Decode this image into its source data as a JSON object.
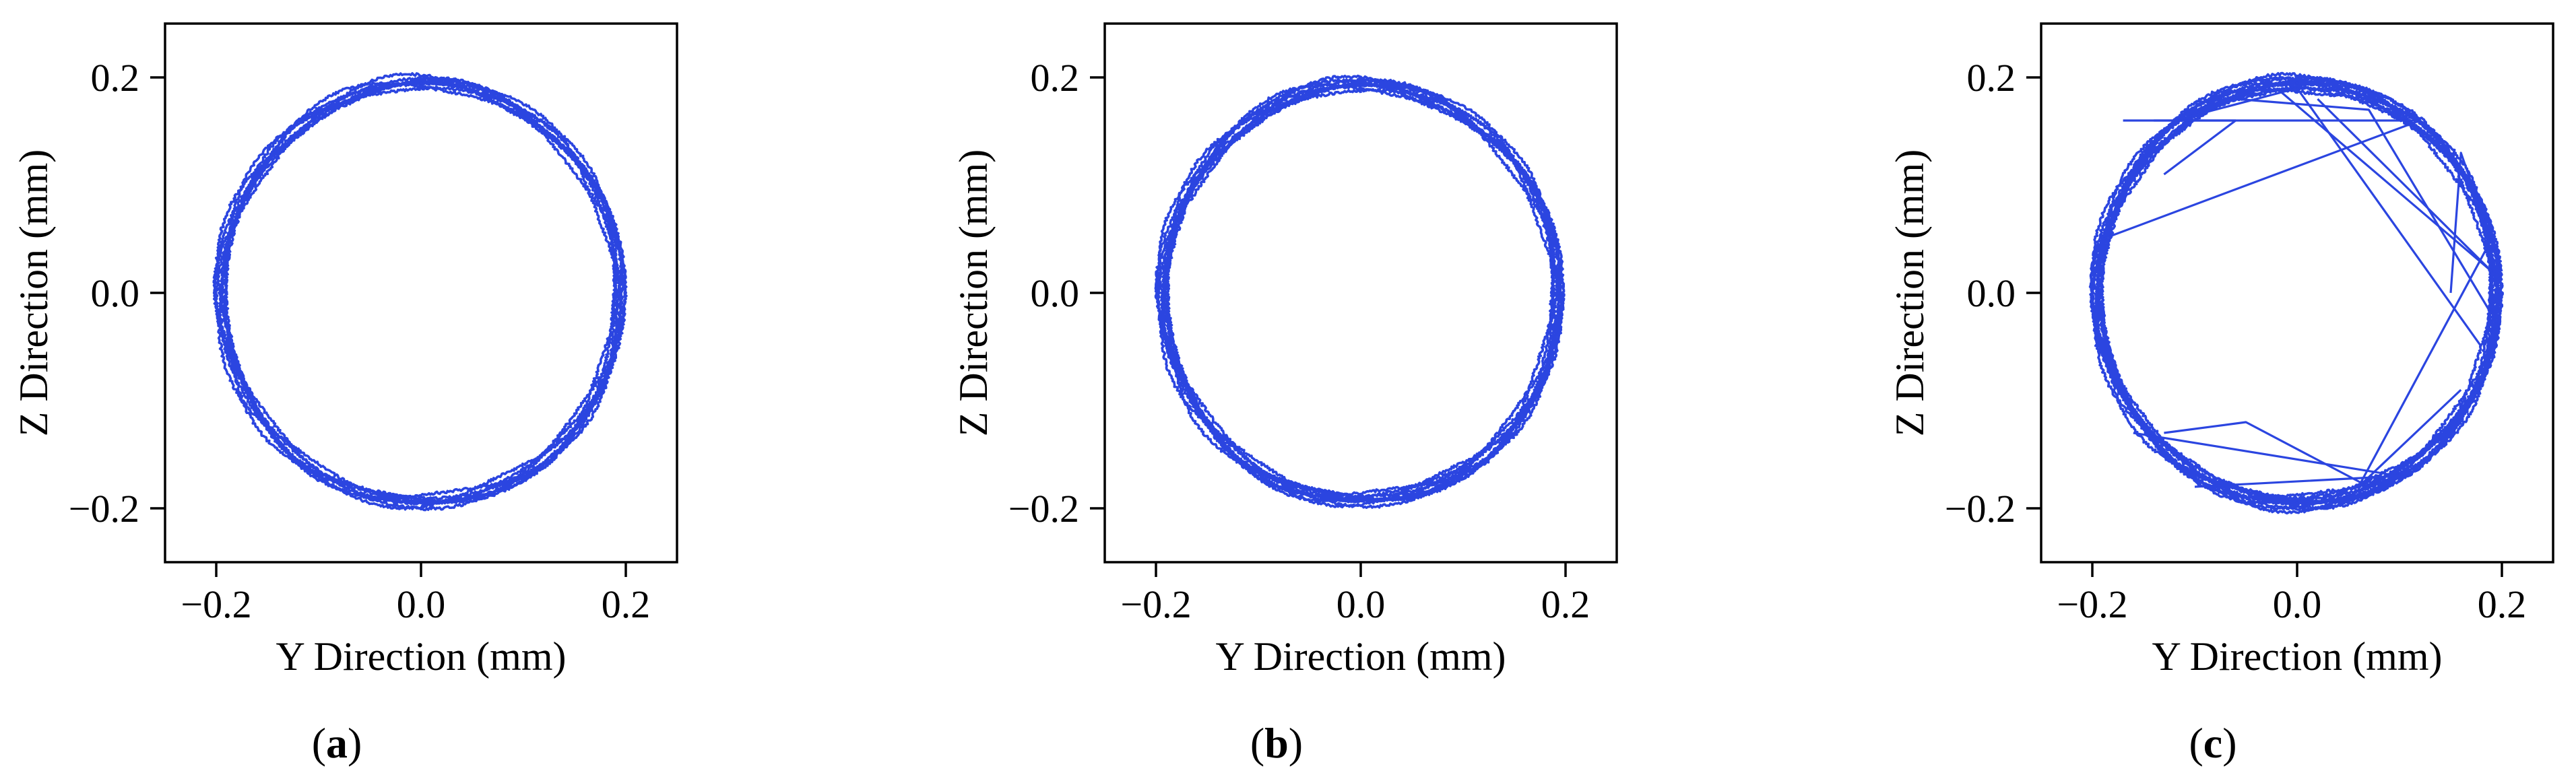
{
  "chart_data": [
    {
      "type": "line",
      "panel_label": "a",
      "xlabel": "Y Direction (mm)",
      "ylabel": "Z Direction (mm)",
      "xlim": [
        -0.25,
        0.25
      ],
      "ylim": [
        -0.25,
        0.25
      ],
      "xticks": [
        -0.2,
        0.0,
        0.2
      ],
      "yticks": [
        -0.2,
        0.0,
        0.2
      ],
      "xtick_labels": [
        "−0.2",
        "0.0",
        "0.2"
      ],
      "ytick_labels": [
        "−0.2",
        "0.0",
        "0.2"
      ],
      "grid": false,
      "series": [
        {
          "color": "#2b45e0",
          "orbit_radius": 0.195,
          "revolutions": 9,
          "x": [
            0.0,
            0.098,
            0.169,
            0.195,
            0.169,
            0.098,
            0.0,
            -0.098,
            -0.169,
            -0.195,
            -0.169,
            -0.098,
            0.0
          ],
          "y": [
            0.195,
            0.169,
            0.098,
            0.0,
            -0.098,
            -0.169,
            -0.195,
            -0.169,
            -0.098,
            0.0,
            0.098,
            0.169,
            0.195
          ]
        }
      ]
    },
    {
      "type": "line",
      "panel_label": "b",
      "xlabel": "Y Direction (mm)",
      "ylabel": "Z Direction (mm)",
      "xlim": [
        -0.25,
        0.25
      ],
      "ylim": [
        -0.25,
        0.25
      ],
      "xticks": [
        -0.2,
        0.0,
        0.2
      ],
      "yticks": [
        -0.2,
        0.0,
        0.2
      ],
      "xtick_labels": [
        "−0.2",
        "0.0",
        "0.2"
      ],
      "ytick_labels": [
        "−0.2",
        "0.0",
        "0.2"
      ],
      "grid": false,
      "series": [
        {
          "color": "#2b45e0",
          "orbit_radius": 0.193,
          "revolutions": 10,
          "x": [
            0.0,
            0.097,
            0.167,
            0.193,
            0.167,
            0.097,
            0.0,
            -0.097,
            -0.167,
            -0.193,
            -0.167,
            -0.097,
            0.0
          ],
          "y": [
            0.193,
            0.167,
            0.097,
            0.0,
            -0.097,
            -0.167,
            -0.193,
            -0.167,
            -0.097,
            0.0,
            0.097,
            0.167,
            0.193
          ]
        }
      ]
    },
    {
      "type": "line",
      "panel_label": "c",
      "xlabel": "Y Direction (mm)",
      "ylabel": "Z Direction (mm)",
      "xlim": [
        -0.25,
        0.25
      ],
      "ylim": [
        -0.25,
        0.25
      ],
      "xticks": [
        -0.2,
        0.0,
        0.2
      ],
      "yticks": [
        -0.2,
        0.0,
        0.2
      ],
      "xtick_labels": [
        "−0.2",
        "0.0",
        "0.2"
      ],
      "ytick_labels": [
        "−0.2",
        "0.0",
        "0.2"
      ],
      "grid": false,
      "series": [
        {
          "color": "#2b45e0",
          "orbit_radius": 0.195,
          "revolutions": 12,
          "x": [
            0.0,
            0.098,
            0.169,
            0.195,
            0.169,
            0.098,
            0.0,
            -0.098,
            -0.169,
            -0.195,
            -0.169,
            -0.098,
            0.0
          ],
          "y": [
            0.195,
            0.169,
            0.098,
            0.0,
            -0.098,
            -0.169,
            -0.195,
            -0.169,
            -0.098,
            0.0,
            0.098,
            0.169,
            0.195
          ],
          "chords": [
            [
              [
                -0.17,
                0.16
              ],
              [
                0.12,
                0.16
              ],
              [
                -0.19,
                0.05
              ]
            ],
            [
              [
                -0.12,
                0.16
              ],
              [
                0.0,
                0.19
              ],
              [
                0.18,
                -0.05
              ]
            ],
            [
              [
                0.02,
                0.18
              ],
              [
                0.19,
                0.02
              ],
              [
                -0.02,
                0.19
              ]
            ],
            [
              [
                -0.06,
                0.18
              ],
              [
                0.07,
                0.17
              ],
              [
                0.19,
                -0.02
              ]
            ],
            [
              [
                -0.13,
                -0.13
              ],
              [
                -0.05,
                -0.12
              ],
              [
                0.07,
                -0.18
              ]
            ],
            [
              [
                -0.16,
                -0.13
              ],
              [
                0.1,
                -0.17
              ],
              [
                -0.1,
                -0.18
              ]
            ],
            [
              [
                0.15,
                0.0
              ],
              [
                0.16,
                0.13
              ],
              [
                0.2,
                0.02
              ]
            ],
            [
              [
                -0.14,
                0.16
              ],
              [
                -0.06,
                0.16
              ],
              [
                -0.13,
                0.11
              ]
            ],
            [
              [
                0.16,
                -0.09
              ],
              [
                0.06,
                -0.18
              ],
              [
                0.19,
                0.05
              ]
            ]
          ]
        }
      ]
    }
  ]
}
